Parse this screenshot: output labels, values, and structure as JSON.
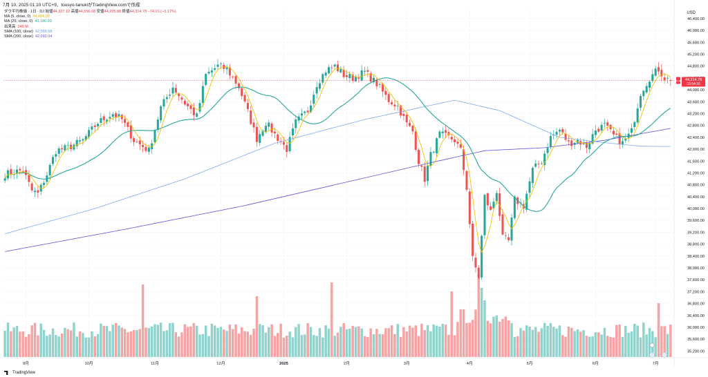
{
  "header": {
    "title": "7月 10, 2025 01:10 UTC+9、tousyo-tanukiがTradingView.comで作成",
    "symbol": "ダウ平均株価 · 1日 · DJ",
    "open_label": "始値",
    "open": "44,327.12",
    "high_label": "高値",
    "high": "44,556.68",
    "low_label": "安値",
    "low": "44,225.88",
    "close_label": "終値",
    "close": "44,314.78",
    "change": "−74.01 (−0.17%)"
  },
  "legend": [
    {
      "label": "MA (5, close, 0)",
      "value": "44,494.98",
      "color": "#e6b800"
    },
    {
      "label": "MA (25, close, 0)",
      "value": "43,180.93",
      "color": "#26a69a"
    },
    {
      "label": "出来高",
      "value": "249 M",
      "color": "#f23645"
    },
    {
      "label": "SMA (100, close)",
      "value": "42,099.58",
      "color": "#5b9cf6"
    },
    {
      "label": "SMA (200, close)",
      "value": "42,092.04",
      "color": "#5c57d9"
    }
  ],
  "currency": "USD",
  "footer": {
    "brand": "TradingView"
  },
  "price_tags": {
    "last": "44,314.78",
    "countdown": "03:54:16",
    "badge": "DJI"
  },
  "colors": {
    "up": "#26a69a",
    "down": "#ef5350",
    "ma5": "#f2c200",
    "ma25": "#26a69a",
    "sma100": "#7fa8f5",
    "sma200": "#5c57d9",
    "vol_up": "#8fd3cc",
    "vol_down": "#f5a3a3"
  },
  "chart_data": {
    "type": "candlestick",
    "x_ticks": [
      {
        "label": "9月",
        "i": 7
      },
      {
        "label": "10月",
        "i": 28
      },
      {
        "label": "11月",
        "i": 50
      },
      {
        "label": "12月",
        "i": 72
      },
      {
        "label": "2025",
        "i": 93
      },
      {
        "label": "2月",
        "i": 114
      },
      {
        "label": "3月",
        "i": 134
      },
      {
        "label": "4月",
        "i": 155
      },
      {
        "label": "5月",
        "i": 175
      },
      {
        "label": "6月",
        "i": 197
      },
      {
        "label": "7月",
        "i": 217
      }
    ],
    "y_ticks": [
      35200,
      35600,
      36000,
      36400,
      36800,
      37200,
      37600,
      38000,
      38400,
      38800,
      39200,
      39600,
      40000,
      40400,
      40800,
      41200,
      41600,
      42000,
      42400,
      42800,
      43200,
      43600,
      44000,
      44400,
      44800,
      45200,
      45600,
      46000,
      46400
    ],
    "ylim": [
      35000,
      46700
    ],
    "series": [
      {
        "name": "MA (5, close, 0)",
        "kind": "ma",
        "period": 5
      },
      {
        "name": "MA (25, close, 0)",
        "kind": "ma",
        "period": 25
      },
      {
        "name": "SMA (100, close)",
        "kind": "sma",
        "period": 100
      },
      {
        "name": "SMA (200, close)",
        "kind": "sma",
        "period": 200
      }
    ],
    "sma_anchors": {
      "sma100": [
        [
          0,
          39150
        ],
        [
          30,
          40000
        ],
        [
          60,
          41000
        ],
        [
          90,
          42200
        ],
        [
          120,
          43000
        ],
        [
          150,
          43650
        ],
        [
          165,
          43300
        ],
        [
          185,
          42400
        ],
        [
          200,
          42220
        ],
        [
          212,
          42100
        ],
        [
          222,
          42090
        ]
      ],
      "sma200": [
        [
          0,
          38550
        ],
        [
          40,
          39300
        ],
        [
          80,
          40100
        ],
        [
          110,
          40800
        ],
        [
          140,
          41500
        ],
        [
          160,
          41950
        ],
        [
          180,
          42050
        ],
        [
          200,
          42300
        ],
        [
          222,
          42700
        ]
      ]
    },
    "close_anchors": [
      [
        0,
        41150
      ],
      [
        6,
        41300
      ],
      [
        9,
        40600
      ],
      [
        11,
        40500
      ],
      [
        14,
        41150
      ],
      [
        17,
        41950
      ],
      [
        21,
        42050
      ],
      [
        26,
        42300
      ],
      [
        31,
        42900
      ],
      [
        36,
        43200
      ],
      [
        39,
        43000
      ],
      [
        43,
        42300
      ],
      [
        48,
        41950
      ],
      [
        52,
        43400
      ],
      [
        56,
        44100
      ],
      [
        60,
        43550
      ],
      [
        64,
        43100
      ],
      [
        67,
        44500
      ],
      [
        71,
        44800
      ],
      [
        74,
        44700
      ],
      [
        78,
        44100
      ],
      [
        81,
        43250
      ],
      [
        84,
        42350
      ],
      [
        87,
        42900
      ],
      [
        90,
        42500
      ],
      [
        94,
        42000
      ],
      [
        97,
        42900
      ],
      [
        101,
        43300
      ],
      [
        104,
        44200
      ],
      [
        107,
        44650
      ],
      [
        110,
        44800
      ],
      [
        113,
        44500
      ],
      [
        116,
        44400
      ],
      [
        120,
        44600
      ],
      [
        124,
        44200
      ],
      [
        128,
        43650
      ],
      [
        131,
        43450
      ],
      [
        134,
        42850
      ],
      [
        136,
        42600
      ],
      [
        138,
        41600
      ],
      [
        140,
        41000
      ],
      [
        142,
        41800
      ],
      [
        145,
        42500
      ],
      [
        148,
        42400
      ],
      [
        150,
        42300
      ],
      [
        152,
        41950
      ],
      [
        154,
        40700
      ],
      [
        156,
        38300
      ],
      [
        158,
        37700
      ],
      [
        160,
        40400
      ],
      [
        162,
        39900
      ],
      [
        164,
        40600
      ],
      [
        166,
        39000
      ],
      [
        168,
        38900
      ],
      [
        170,
        40300
      ],
      [
        173,
        40100
      ],
      [
        176,
        41300
      ],
      [
        179,
        41600
      ],
      [
        182,
        42400
      ],
      [
        185,
        42650
      ],
      [
        188,
        42200
      ],
      [
        191,
        42300
      ],
      [
        194,
        42100
      ],
      [
        197,
        42650
      ],
      [
        200,
        42800
      ],
      [
        203,
        42450
      ],
      [
        206,
        42200
      ],
      [
        209,
        42600
      ],
      [
        212,
        43900
      ],
      [
        215,
        44400
      ],
      [
        218,
        44700
      ],
      [
        220,
        44400
      ],
      [
        222,
        44310
      ]
    ],
    "candles_summary": {
      "count": 223,
      "last_close": 44314.78,
      "last_open": 44327.12,
      "last_high": 44556.68,
      "last_low": 44225.88
    },
    "volume_label": "249 M"
  }
}
